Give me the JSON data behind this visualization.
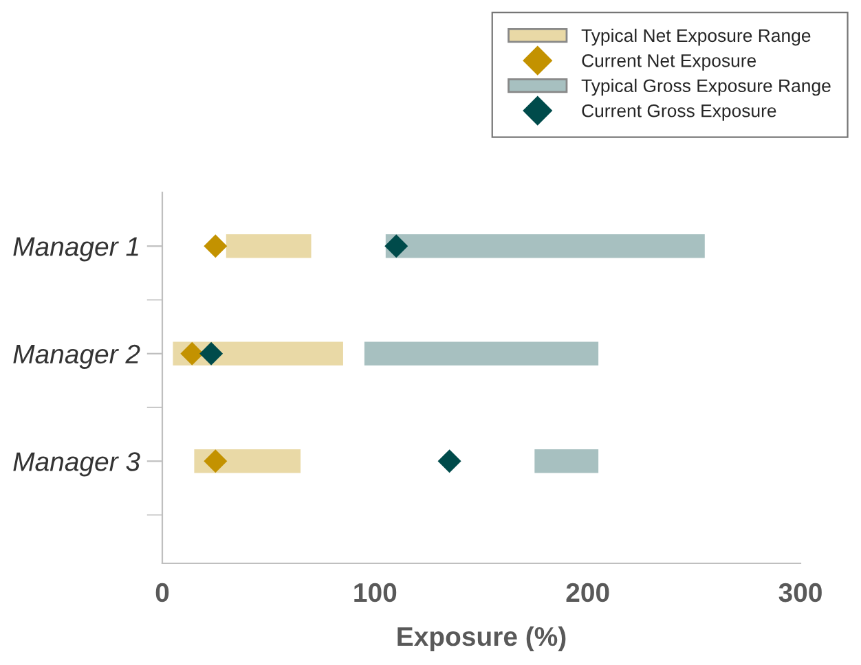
{
  "chart_data": {
    "type": "bar",
    "orientation": "horizontal",
    "categories": [
      "Manager 1",
      "Manager 2",
      "Manager 3"
    ],
    "xlabel": "Exposure (%)",
    "xlim": [
      0,
      300
    ],
    "xticks": [
      0,
      100,
      200,
      300
    ],
    "legend": "top right",
    "grid": false,
    "series": [
      {
        "name": "Typical Net Exposure Range",
        "color": "#e9d9a6",
        "base": [
          30,
          5,
          15
        ],
        "values": [
          40,
          80,
          50
        ]
      },
      {
        "name": "Current Net Exposure",
        "type": "scatter",
        "marker": "diamond",
        "color": "#c39200",
        "values": [
          25,
          14,
          25
        ]
      },
      {
        "name": "Typical Gross Exposure Range",
        "color": "#a7c0c0",
        "base": [
          105,
          95,
          175
        ],
        "values": [
          150,
          110,
          30
        ]
      },
      {
        "name": "Current Gross Exposure",
        "type": "scatter",
        "marker": "diamond",
        "color": "#004b4b",
        "values": [
          110,
          23,
          135
        ]
      }
    ]
  }
}
